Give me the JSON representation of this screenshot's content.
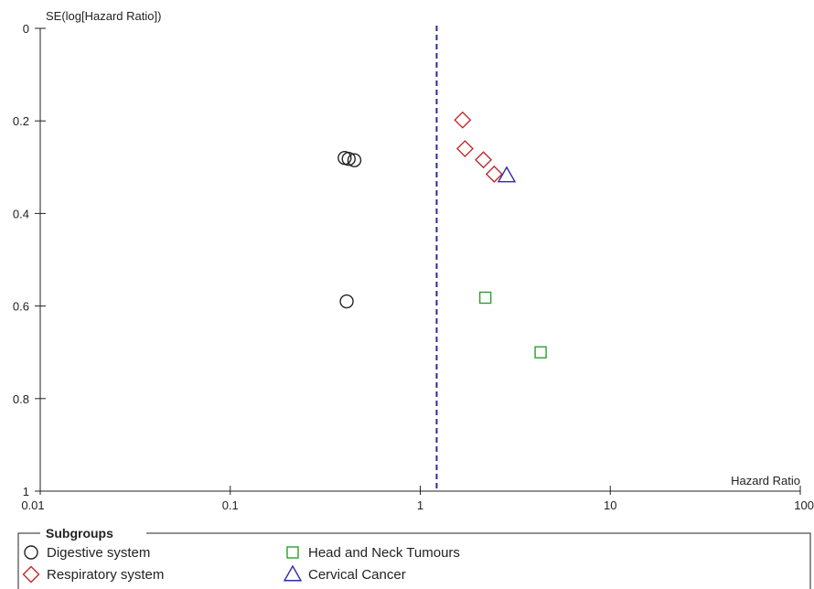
{
  "chart_data": {
    "type": "scatter",
    "subtype": "funnel-plot",
    "xlabel": "Hazard Ratio",
    "ylabel": "SE(log[Hazard Ratio])",
    "x_scale": "log",
    "xlim": [
      0.01,
      100
    ],
    "ylim": [
      0,
      1
    ],
    "y_inverted": true,
    "x_ticks": [
      0.01,
      0.1,
      1,
      10,
      100
    ],
    "x_tick_labels": [
      "0.01",
      "0.1",
      "1",
      "10",
      "100"
    ],
    "y_ticks": [
      0,
      0.2,
      0.4,
      0.6,
      0.8,
      1
    ],
    "y_tick_labels": [
      "0",
      "0.2",
      "0.4",
      "0.6",
      "0.8",
      "1"
    ],
    "reference_line": {
      "x": 1.22,
      "style": "dashed",
      "color": "#2b2b9e"
    },
    "grid": false,
    "legend": {
      "title": "Subgroups",
      "placement": "bottom"
    },
    "series": [
      {
        "name": "Digestive system",
        "marker": "circle",
        "color": "#222222",
        "points": [
          {
            "x": 0.4,
            "y": 0.28
          },
          {
            "x": 0.42,
            "y": 0.282
          },
          {
            "x": 0.45,
            "y": 0.285
          },
          {
            "x": 0.41,
            "y": 0.59
          }
        ]
      },
      {
        "name": "Respiratory system",
        "marker": "diamond",
        "color": "#c0282c",
        "points": [
          {
            "x": 1.67,
            "y": 0.198
          },
          {
            "x": 1.72,
            "y": 0.26
          },
          {
            "x": 2.15,
            "y": 0.284
          },
          {
            "x": 2.45,
            "y": 0.315
          }
        ]
      },
      {
        "name": "Head and Neck Tumours",
        "marker": "square",
        "color": "#2ca02c",
        "points": [
          {
            "x": 2.2,
            "y": 0.582
          },
          {
            "x": 4.3,
            "y": 0.7
          }
        ]
      },
      {
        "name": "Cervical Cancer",
        "marker": "triangle",
        "color": "#2b2bb0",
        "points": [
          {
            "x": 2.85,
            "y": 0.318
          }
        ]
      }
    ]
  }
}
